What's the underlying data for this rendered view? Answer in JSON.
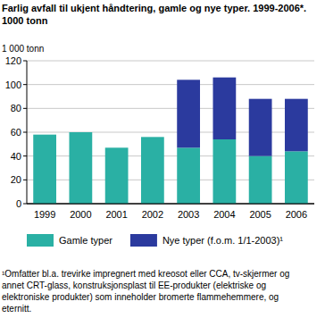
{
  "chart_data": {
    "type": "bar",
    "stacked": true,
    "title": "Farlig avfall til ukjent håndtering, gamle og nye typer. 1999-2006*. 1000 tonn",
    "y_label": "1 000 tonn",
    "categories": [
      "1999",
      "2000",
      "2001",
      "2002",
      "2003",
      "2004",
      "2005",
      "2006"
    ],
    "series": [
      {
        "name": "Gamle typer",
        "color": "#2ab0a4",
        "values": [
          58,
          60,
          47,
          56,
          47,
          54,
          40,
          44
        ]
      },
      {
        "name": "Nye typer (f.o.m. 1/1-2003)¹",
        "color": "#2b3a9e",
        "values": [
          null,
          null,
          null,
          null,
          57,
          52,
          48,
          44
        ]
      }
    ],
    "ylim": [
      0,
      120
    ],
    "yticks": [
      0,
      20,
      40,
      60,
      80,
      100,
      120
    ],
    "grid": true,
    "footnote": "¹Omfatter bl.a. trevirke impregnert med kreosot eller CCA, tv-skjermer og annet CRT-glass, konstruksjonsplast til EE-produkter (elektriske og elektroniske produkter) som inneholder bromerte flammehemmere, og eternitt."
  }
}
